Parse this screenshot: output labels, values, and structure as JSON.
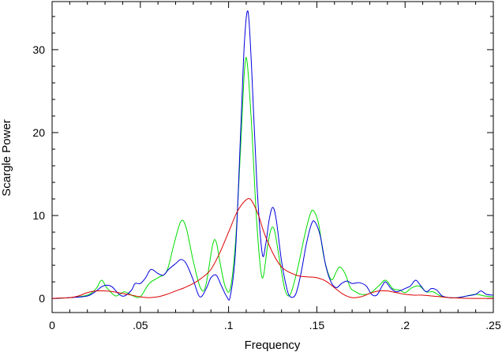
{
  "chart_data": {
    "type": "line",
    "title": "",
    "xlabel": "Frequency",
    "ylabel": "Scargle Power",
    "xlim": [
      0,
      0.25
    ],
    "ylim": [
      -1.7,
      35.8
    ],
    "grid": false,
    "legend": "none",
    "x_ticks": [
      {
        "value": 0,
        "label": "0"
      },
      {
        "value": 0.05,
        "label": ".05"
      },
      {
        "value": 0.1,
        "label": ".1"
      },
      {
        "value": 0.15,
        "label": ".15"
      },
      {
        "value": 0.2,
        "label": ".2"
      },
      {
        "value": 0.25,
        "label": ".25"
      }
    ],
    "y_ticks": [
      {
        "value": 0,
        "label": "0"
      },
      {
        "value": 10,
        "label": "10"
      },
      {
        "value": 20,
        "label": "20"
      },
      {
        "value": 30,
        "label": "30"
      }
    ],
    "series": [
      {
        "color": "#00dd00",
        "points": [
          [
            0,
            0
          ],
          [
            0.01,
            0.1
          ],
          [
            0.02,
            0.4
          ],
          [
            0.025,
            1.2
          ],
          [
            0.028,
            2.2
          ],
          [
            0.031,
            1.3
          ],
          [
            0.036,
            0.3
          ],
          [
            0.041,
            0.8
          ],
          [
            0.046,
            0.3
          ],
          [
            0.05,
            0.2
          ],
          [
            0.055,
            1.8
          ],
          [
            0.06,
            2.5
          ],
          [
            0.065,
            3.3
          ],
          [
            0.069,
            6.5
          ],
          [
            0.073,
            9.3
          ],
          [
            0.076,
            8.5
          ],
          [
            0.08,
            4.5
          ],
          [
            0.084,
            1.3
          ],
          [
            0.087,
            1.5
          ],
          [
            0.091,
            6.5
          ],
          [
            0.093,
            6.8
          ],
          [
            0.095,
            4.5
          ],
          [
            0.098,
            1.5
          ],
          [
            0.101,
            1.2
          ],
          [
            0.104,
            7
          ],
          [
            0.107,
            19
          ],
          [
            0.109,
            27.5
          ],
          [
            0.1105,
            28.5
          ],
          [
            0.113,
            21
          ],
          [
            0.116,
            9
          ],
          [
            0.119,
            2.5
          ],
          [
            0.122,
            6.2
          ],
          [
            0.124,
            8.3
          ],
          [
            0.126,
            8.2
          ],
          [
            0.129,
            4.5
          ],
          [
            0.132,
            1
          ],
          [
            0.135,
            0.5
          ],
          [
            0.139,
            3.5
          ],
          [
            0.143,
            7.5
          ],
          [
            0.146,
            10
          ],
          [
            0.148,
            10.6
          ],
          [
            0.151,
            9
          ],
          [
            0.154,
            5
          ],
          [
            0.158,
            2.3
          ],
          [
            0.161,
            3.2
          ],
          [
            0.163,
            3.8
          ],
          [
            0.166,
            3
          ],
          [
            0.169,
            1.3
          ],
          [
            0.172,
            0.8
          ],
          [
            0.175,
            0.5
          ],
          [
            0.18,
            0.6
          ],
          [
            0.185,
            1.5
          ],
          [
            0.189,
            2.2
          ],
          [
            0.193,
            1.2
          ],
          [
            0.197,
            1
          ],
          [
            0.2,
            0.7
          ],
          [
            0.204,
            1.3
          ],
          [
            0.208,
            1.5
          ],
          [
            0.212,
            0.8
          ],
          [
            0.216,
            0.8
          ],
          [
            0.22,
            0.3
          ],
          [
            0.225,
            0.1
          ],
          [
            0.23,
            0.1
          ],
          [
            0.235,
            0.3
          ],
          [
            0.24,
            0.5
          ],
          [
            0.245,
            0.3
          ],
          [
            0.25,
            0.2
          ]
        ]
      },
      {
        "color": "#0000dd",
        "points": [
          [
            0,
            0
          ],
          [
            0.01,
            0.1
          ],
          [
            0.02,
            0.3
          ],
          [
            0.025,
            0.9
          ],
          [
            0.028,
            1.4
          ],
          [
            0.031,
            1.6
          ],
          [
            0.034,
            1.4
          ],
          [
            0.038,
            0.5
          ],
          [
            0.041,
            0.3
          ],
          [
            0.045,
            1
          ],
          [
            0.047,
            1.8
          ],
          [
            0.05,
            1.8
          ],
          [
            0.053,
            2.5
          ],
          [
            0.056,
            3.5
          ],
          [
            0.06,
            3
          ],
          [
            0.063,
            2.8
          ],
          [
            0.066,
            3.5
          ],
          [
            0.07,
            4.2
          ],
          [
            0.073,
            4.7
          ],
          [
            0.076,
            4.2
          ],
          [
            0.08,
            2.2
          ],
          [
            0.083,
            0.4
          ],
          [
            0.085,
            0.3
          ],
          [
            0.088,
            1.5
          ],
          [
            0.09,
            2.5
          ],
          [
            0.093,
            2.8
          ],
          [
            0.096,
            1.5
          ],
          [
            0.099,
            0.2
          ],
          [
            0.101,
            0.3
          ],
          [
            0.104,
            6
          ],
          [
            0.107,
            21
          ],
          [
            0.109,
            31
          ],
          [
            0.111,
            34.6
          ],
          [
            0.113,
            28
          ],
          [
            0.116,
            14
          ],
          [
            0.119,
            5.5
          ],
          [
            0.121,
            6.5
          ],
          [
            0.123,
            9.5
          ],
          [
            0.125,
            11
          ],
          [
            0.127,
            9.5
          ],
          [
            0.13,
            4.5
          ],
          [
            0.133,
            1.2
          ],
          [
            0.135,
            0.2
          ],
          [
            0.138,
            0.5
          ],
          [
            0.141,
            3
          ],
          [
            0.144,
            6.5
          ],
          [
            0.147,
            9
          ],
          [
            0.149,
            9.2
          ],
          [
            0.152,
            7.5
          ],
          [
            0.155,
            4
          ],
          [
            0.158,
            2
          ],
          [
            0.161,
            1.3
          ],
          [
            0.164,
            1.8
          ],
          [
            0.167,
            2.1
          ],
          [
            0.17,
            1.8
          ],
          [
            0.174,
            1.9
          ],
          [
            0.178,
            1.5
          ],
          [
            0.181,
            0.5
          ],
          [
            0.184,
            0.4
          ],
          [
            0.187,
            1.5
          ],
          [
            0.189,
            2
          ],
          [
            0.192,
            1.2
          ],
          [
            0.195,
            0.8
          ],
          [
            0.198,
            1
          ],
          [
            0.2,
            1.2
          ],
          [
            0.203,
            1.5
          ],
          [
            0.206,
            2.2
          ],
          [
            0.209,
            1.5
          ],
          [
            0.212,
            0.8
          ],
          [
            0.215,
            1.2
          ],
          [
            0.218,
            1
          ],
          [
            0.221,
            0.3
          ],
          [
            0.225,
            0.1
          ],
          [
            0.23,
            0.1
          ],
          [
            0.235,
            0.3
          ],
          [
            0.24,
            0.5
          ],
          [
            0.243,
            0.9
          ],
          [
            0.246,
            0.5
          ],
          [
            0.25,
            0.4
          ]
        ]
      },
      {
        "color": "#dd0000",
        "points": [
          [
            0,
            0
          ],
          [
            0.005,
            0.05
          ],
          [
            0.01,
            0.1
          ],
          [
            0.015,
            0.3
          ],
          [
            0.02,
            0.7
          ],
          [
            0.025,
            0.9
          ],
          [
            0.03,
            0.9
          ],
          [
            0.035,
            0.8
          ],
          [
            0.04,
            0.6
          ],
          [
            0.045,
            0.4
          ],
          [
            0.05,
            0.2
          ],
          [
            0.055,
            0.1
          ],
          [
            0.06,
            0.2
          ],
          [
            0.065,
            0.5
          ],
          [
            0.07,
            0.9
          ],
          [
            0.075,
            1.3
          ],
          [
            0.08,
            1.8
          ],
          [
            0.085,
            2.5
          ],
          [
            0.09,
            3.5
          ],
          [
            0.095,
            5.5
          ],
          [
            0.1,
            8
          ],
          [
            0.105,
            10.5
          ],
          [
            0.11,
            11.9
          ],
          [
            0.113,
            11.8
          ],
          [
            0.117,
            10
          ],
          [
            0.12,
            8
          ],
          [
            0.125,
            5.5
          ],
          [
            0.13,
            3.8
          ],
          [
            0.135,
            3.1
          ],
          [
            0.14,
            2.7
          ],
          [
            0.145,
            2.6
          ],
          [
            0.15,
            2.5
          ],
          [
            0.155,
            2.1
          ],
          [
            0.16,
            1.3
          ],
          [
            0.165,
            0.5
          ],
          [
            0.17,
            0.1
          ],
          [
            0.175,
            0.2
          ],
          [
            0.18,
            0.6
          ],
          [
            0.185,
            0.9
          ],
          [
            0.19,
            0.9
          ],
          [
            0.195,
            0.7
          ],
          [
            0.2,
            0.5
          ],
          [
            0.205,
            0.4
          ],
          [
            0.21,
            0.4
          ],
          [
            0.215,
            0.3
          ],
          [
            0.22,
            0.2
          ],
          [
            0.225,
            0.1
          ],
          [
            0.23,
            0.05
          ],
          [
            0.24,
            0
          ],
          [
            0.25,
            0
          ]
        ]
      }
    ]
  }
}
